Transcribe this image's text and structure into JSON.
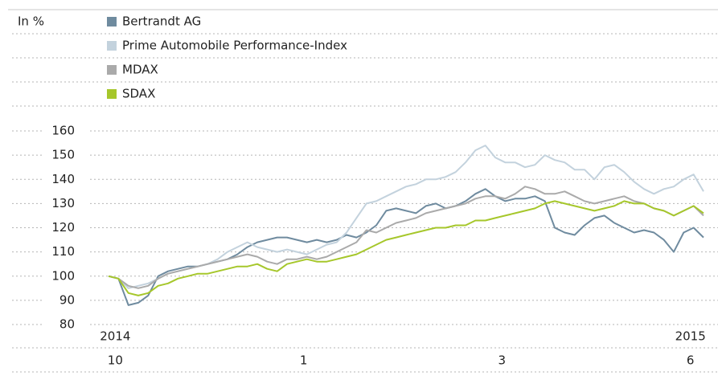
{
  "chart_data": {
    "type": "line",
    "y_label": "In %",
    "legend": "top",
    "categories": [
      null,
      "10",
      null,
      null,
      null,
      null,
      null,
      null,
      null,
      null,
      null,
      null,
      null,
      null,
      null,
      null,
      null,
      null,
      null,
      null,
      "1",
      null,
      null,
      null,
      null,
      null,
      null,
      null,
      null,
      null,
      null,
      null,
      null,
      null,
      null,
      null,
      null,
      null,
      null,
      null,
      "3",
      null,
      null,
      null,
      null,
      null,
      null,
      null,
      null,
      null,
      null,
      null,
      null,
      null,
      null,
      null,
      null,
      null,
      null,
      "6",
      null
    ],
    "year_labels": [
      null,
      "2014",
      null,
      null,
      null,
      null,
      null,
      null,
      null,
      null,
      null,
      null,
      null,
      null,
      null,
      null,
      null,
      null,
      null,
      null,
      null,
      null,
      null,
      null,
      null,
      null,
      null,
      null,
      null,
      null,
      null,
      null,
      null,
      null,
      null,
      null,
      null,
      null,
      null,
      null,
      null,
      null,
      null,
      null,
      null,
      null,
      null,
      null,
      null,
      null,
      null,
      null,
      null,
      null,
      null,
      null,
      null,
      null,
      null,
      "2015",
      null
    ],
    "ylim": [
      80,
      160
    ],
    "yticks": [
      80,
      90,
      100,
      110,
      120,
      130,
      140,
      150,
      160
    ],
    "grid": true,
    "series": [
      {
        "name": "Bertrandt AG",
        "color": "#6f8b9f",
        "values": [
          100,
          99,
          88,
          89,
          92,
          100,
          102,
          103,
          104,
          104,
          105,
          106,
          107,
          109,
          112,
          114,
          115,
          116,
          116,
          115,
          114,
          115,
          114,
          115,
          117,
          116,
          118,
          121,
          127,
          128,
          127,
          126,
          129,
          130,
          128,
          129,
          131,
          134,
          136,
          133,
          131,
          132,
          132,
          133,
          131,
          120,
          118,
          117,
          121,
          124,
          125,
          122,
          120,
          118,
          119,
          118,
          115,
          110,
          118,
          120,
          116
        ]
      },
      {
        "name": "Prime Automobile Performance-Index",
        "color": "#c3d2dd",
        "values": [
          100,
          99,
          95,
          96,
          97,
          99,
          101,
          102,
          103,
          104,
          105,
          107,
          110,
          112,
          114,
          112,
          111,
          110,
          111,
          110,
          109,
          111,
          113,
          114,
          118,
          124,
          130,
          131,
          133,
          135,
          137,
          138,
          140,
          140,
          141,
          143,
          147,
          152,
          154,
          149,
          147,
          147,
          145,
          146,
          150,
          148,
          147,
          144,
          144,
          140,
          145,
          146,
          143,
          139,
          136,
          134,
          136,
          137,
          140,
          142,
          135
        ]
      },
      {
        "name": "MDAX",
        "color": "#aaaaaa",
        "values": [
          100,
          99,
          96,
          95,
          96,
          99,
          101,
          102,
          103,
          104,
          105,
          106,
          107,
          108,
          109,
          108,
          106,
          105,
          107,
          107,
          108,
          107,
          108,
          110,
          112,
          114,
          119,
          118,
          120,
          122,
          123,
          124,
          126,
          127,
          128,
          129,
          130,
          132,
          133,
          133,
          132,
          134,
          137,
          136,
          134,
          134,
          135,
          133,
          131,
          130,
          131,
          132,
          133,
          131,
          130,
          128,
          127,
          125,
          127,
          129,
          125
        ]
      },
      {
        "name": "SDAX",
        "color": "#a6c72b",
        "values": [
          100,
          99,
          93,
          92,
          93,
          96,
          97,
          99,
          100,
          101,
          101,
          102,
          103,
          104,
          104,
          105,
          103,
          102,
          105,
          106,
          107,
          106,
          106,
          107,
          108,
          109,
          111,
          113,
          115,
          116,
          117,
          118,
          119,
          120,
          120,
          121,
          121,
          123,
          123,
          124,
          125,
          126,
          127,
          128,
          130,
          131,
          130,
          129,
          128,
          127,
          128,
          129,
          131,
          130,
          130,
          128,
          127,
          125,
          127,
          129,
          126
        ]
      }
    ]
  }
}
